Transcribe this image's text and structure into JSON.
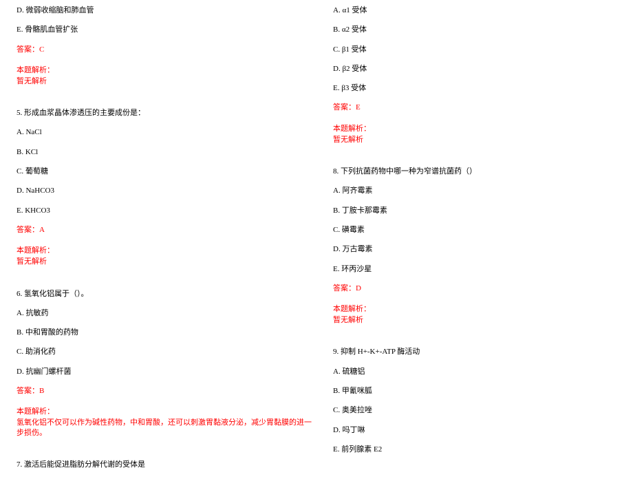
{
  "colors": {
    "text": "#000000",
    "red": "#ff0000",
    "background": "#ffffff"
  },
  "typography": {
    "font_family": "SimSun",
    "font_size_pt": 11,
    "line_spacing": 14
  },
  "left_column": {
    "q4_tail": {
      "opt_d": "D. 微弱收缩脑和肺血管",
      "opt_e": "E. 骨骼肌血管扩张",
      "answer": "答案：C",
      "analysis_label": "本题解析：",
      "analysis_body": "暂无解析"
    },
    "q5": {
      "stem": "5. 形成血浆晶体渗透压的主要成份是：",
      "opt_a": "A. NaCl",
      "opt_b": "B. KCl",
      "opt_c": "C. 葡萄糖",
      "opt_d": "D. NaHCO3",
      "opt_e": "E. KHCO3",
      "answer": "答案：A",
      "analysis_label": "本题解析：",
      "analysis_body": "暂无解析"
    },
    "q6": {
      "stem": "6. 氢氧化铝属于（）。",
      "opt_a": "A. 抗敏药",
      "opt_b": "B. 中和胃酸的药物",
      "opt_c": "C. 助消化药",
      "opt_d": "D. 抗幽门螺杆菌",
      "answer": "答案：B",
      "analysis_label": "本题解析：",
      "analysis_body": "氢氧化铝不仅可以作为碱性药物，中和胃酸，还可以刺激胃黏液分泌，减少胃黏膜的进一步损伤。"
    },
    "q7": {
      "stem": "7. 激活后能促进脂肪分解代谢的受体是"
    }
  },
  "right_column": {
    "q7_tail": {
      "opt_a": "A. α1 受体",
      "opt_b": "B. α2 受体",
      "opt_c": "C. β1 受体",
      "opt_d": "D. β2 受体",
      "opt_e": "E. β3 受体",
      "answer": "答案：E",
      "analysis_label": "本题解析：",
      "analysis_body": "暂无解析"
    },
    "q8": {
      "stem": "8. 下列抗菌药物中哪一种为窄谱抗菌药（）",
      "opt_a": "A. 阿齐霉素",
      "opt_b": "B. 丁胺卡那霉素",
      "opt_c": "C. 磺霉素",
      "opt_d": "D. 万古霉素",
      "opt_e": "E. 环丙沙星",
      "answer": "答案：D",
      "analysis_label": "本题解析：",
      "analysis_body": "暂无解析"
    },
    "q9": {
      "stem": "9. 抑制 H+-K+-ATP 酶活动",
      "opt_a": "A. 硫糖铝",
      "opt_b": "B. 甲氰咪胍",
      "opt_c": "C. 奥美拉唑",
      "opt_d": "D. 吗丁啉",
      "opt_e": "E. 前列腺素 E2"
    }
  }
}
